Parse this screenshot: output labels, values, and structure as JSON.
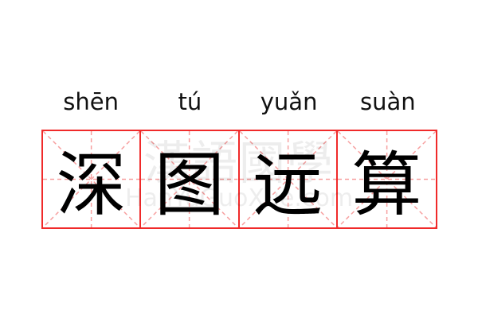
{
  "characters": [
    {
      "hanzi": "深",
      "pinyin": "shēn"
    },
    {
      "hanzi": "图",
      "pinyin": "tú"
    },
    {
      "hanzi": "远",
      "pinyin": "yuǎn"
    },
    {
      "hanzi": "算",
      "pinyin": "suàn"
    }
  ],
  "watermark": {
    "cn": "漢語國學",
    "en": "HanYuGuoXue.com"
  },
  "colors": {
    "grid_border": "#f02a2a",
    "guide_lines": "#f7a0a0",
    "text": "#000000"
  }
}
